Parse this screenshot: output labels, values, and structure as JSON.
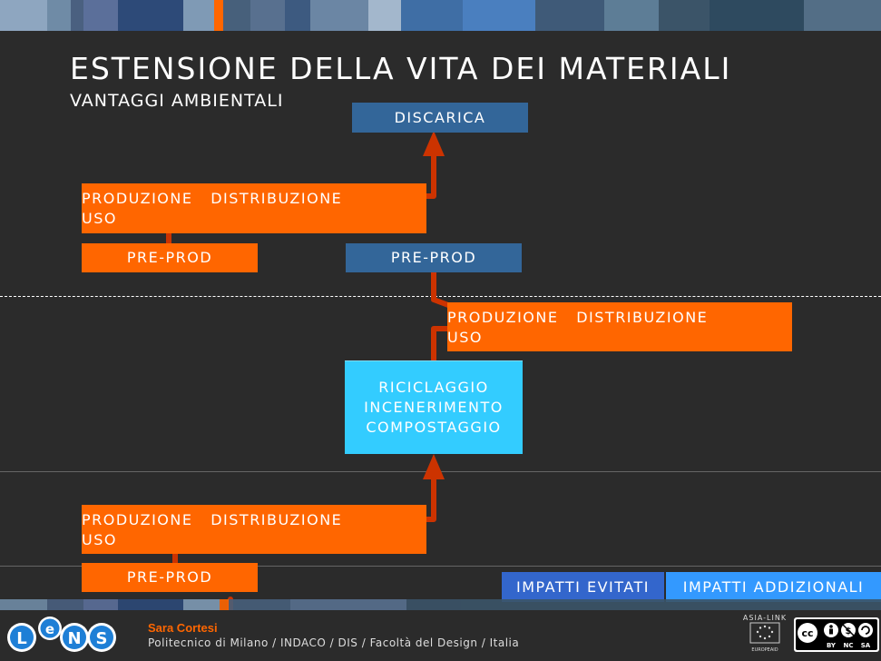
{
  "title": "ESTENSIONE DELLA VITA DEI MATERIALI",
  "subtitle": "VANTAGGI AMBIENTALI",
  "boxes": {
    "discarica": "DISCARICA",
    "prod1_line1": "PRODUZIONE   DISTRIBUZIONE",
    "prod1_line2": "USO",
    "preprod1": "PRE-PROD",
    "preprod2": "PRE-PROD",
    "prod2_line1": "PRODUZIONE   DISTRIBUZIONE",
    "prod2_line2": "USO",
    "ric_line1": "RICICLAGGIO",
    "ric_line2": "INCENERIMENTO",
    "ric_line3": "COMPOSTAGGIO",
    "prod3_line1": "PRODUZIONE   DISTRIBUZIONE",
    "prod3_line2": "USO",
    "preprod3": "PRE-PROD"
  },
  "legend": {
    "avoided": "IMPATTI EVITATI",
    "additional": "IMPATTI ADDIZIONALI"
  },
  "footer": {
    "author": "Sara Cortesi",
    "affiliation": "Politecnico di Milano / INDACO / DIS / Facoltà del Design / Italia",
    "logo_letters": [
      "L",
      "e",
      "N",
      "S"
    ],
    "asia_link": "ASIA-LINK",
    "eu_label": "EUROPEAID",
    "cc_labels": [
      "BY",
      "NC",
      "SA"
    ]
  },
  "colors": {
    "orange": "#ff6600",
    "navy": "#336699",
    "cyan": "#33ccff",
    "arrow": "#cc3300",
    "avoided_bg": "#3366cc",
    "additional_bg": "#3399ff"
  },
  "icons": [
    "lens-logo-icon",
    "asia-link-logo-icon",
    "eu-flag-icon",
    "creative-commons-icon",
    "arrow-up-icon"
  ]
}
